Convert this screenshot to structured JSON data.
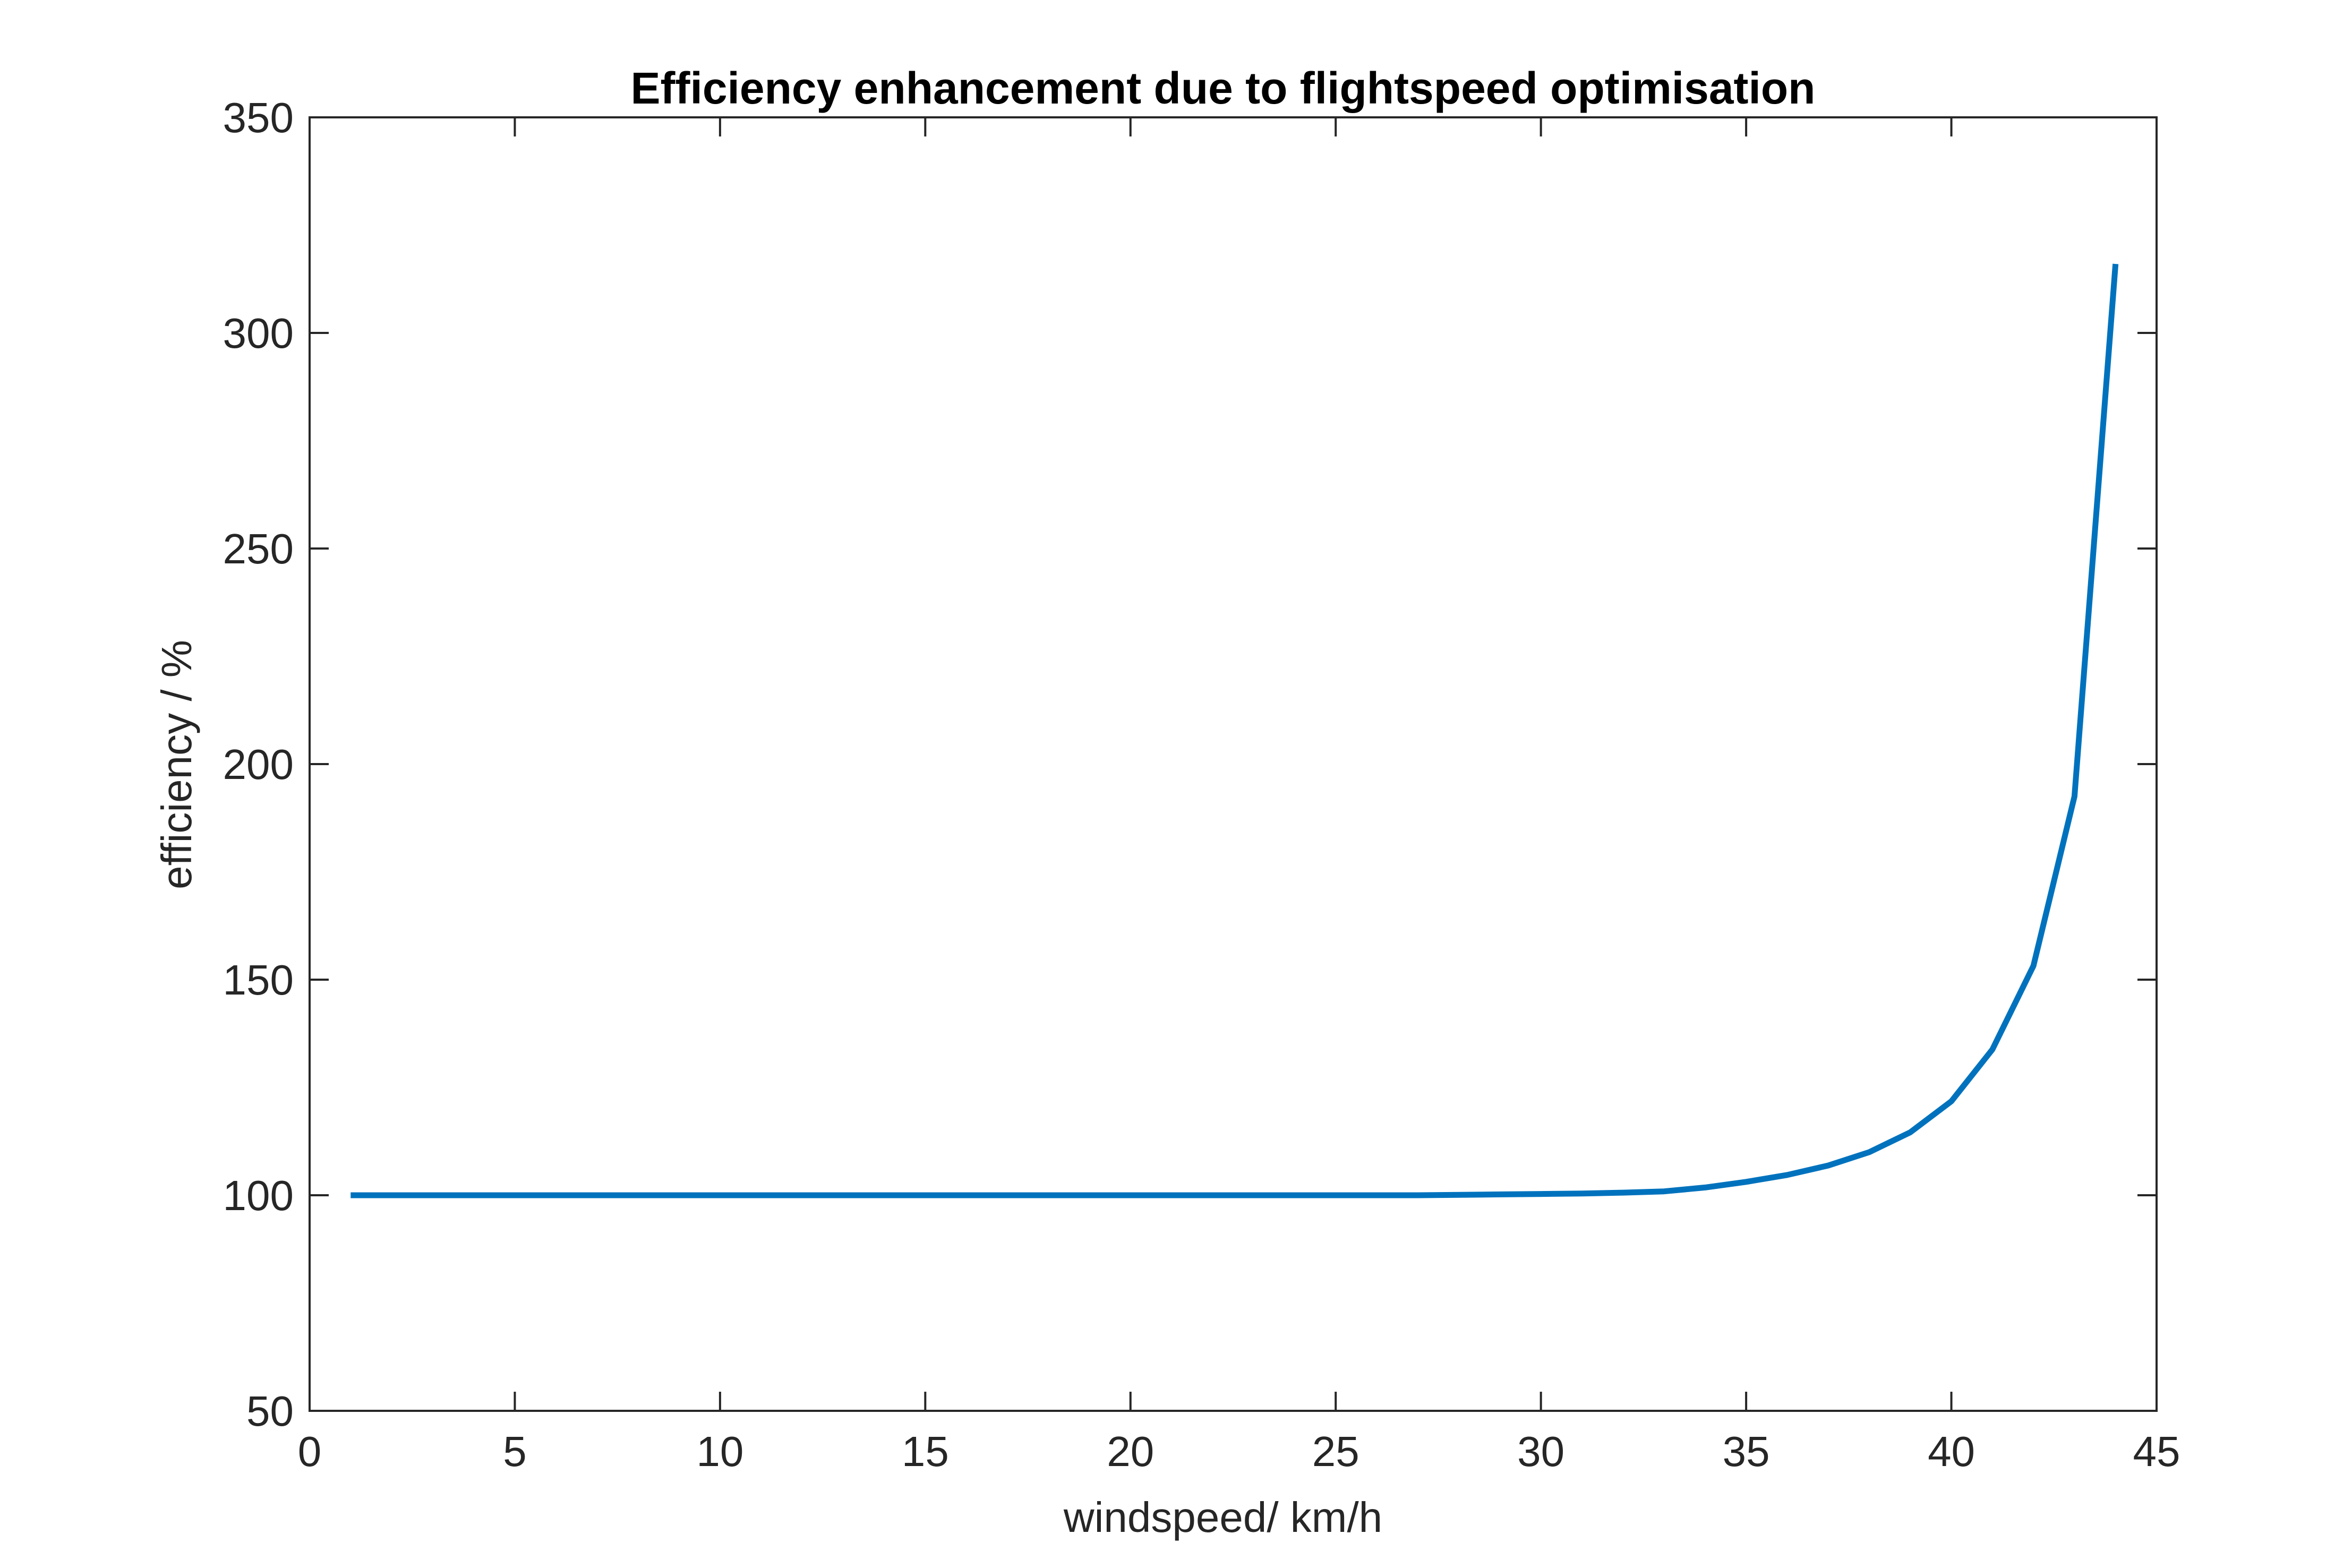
{
  "chart_data": {
    "type": "line",
    "title": "Efficiency enhancement due to flightspeed optimisation",
    "xlabel": "windspeed/ km/h",
    "ylabel": "efficiency / %",
    "xlim": [
      0,
      45
    ],
    "ylim": [
      50,
      350
    ],
    "xticks": [
      0,
      5,
      10,
      15,
      20,
      25,
      30,
      35,
      40,
      45
    ],
    "yticks": [
      50,
      100,
      150,
      200,
      250,
      300,
      350
    ],
    "grid": false,
    "series_color": "#0072BD",
    "series": [
      {
        "x": [
          1,
          2,
          3,
          4,
          5,
          6,
          7,
          8,
          9,
          10,
          11,
          12,
          13,
          14,
          15,
          16,
          17,
          18,
          19,
          20,
          21,
          22,
          23,
          24,
          25,
          26,
          27,
          28,
          29,
          30,
          31,
          32,
          33,
          34,
          35,
          36,
          37,
          38,
          39,
          40,
          41,
          42,
          43,
          44
        ],
        "values": [
          100,
          100,
          100,
          100,
          100,
          100,
          100,
          100,
          100,
          100,
          100,
          100,
          100,
          100,
          100,
          100,
          100,
          100,
          100,
          100,
          100,
          100,
          100,
          100,
          100,
          100,
          100,
          100.1,
          100.2,
          100.3,
          100.4,
          100.6,
          100.9,
          101.8,
          103.1,
          104.7,
          106.9,
          110.0,
          114.6,
          121.8,
          133.8,
          153.2,
          192.5,
          316.0
        ]
      }
    ]
  }
}
